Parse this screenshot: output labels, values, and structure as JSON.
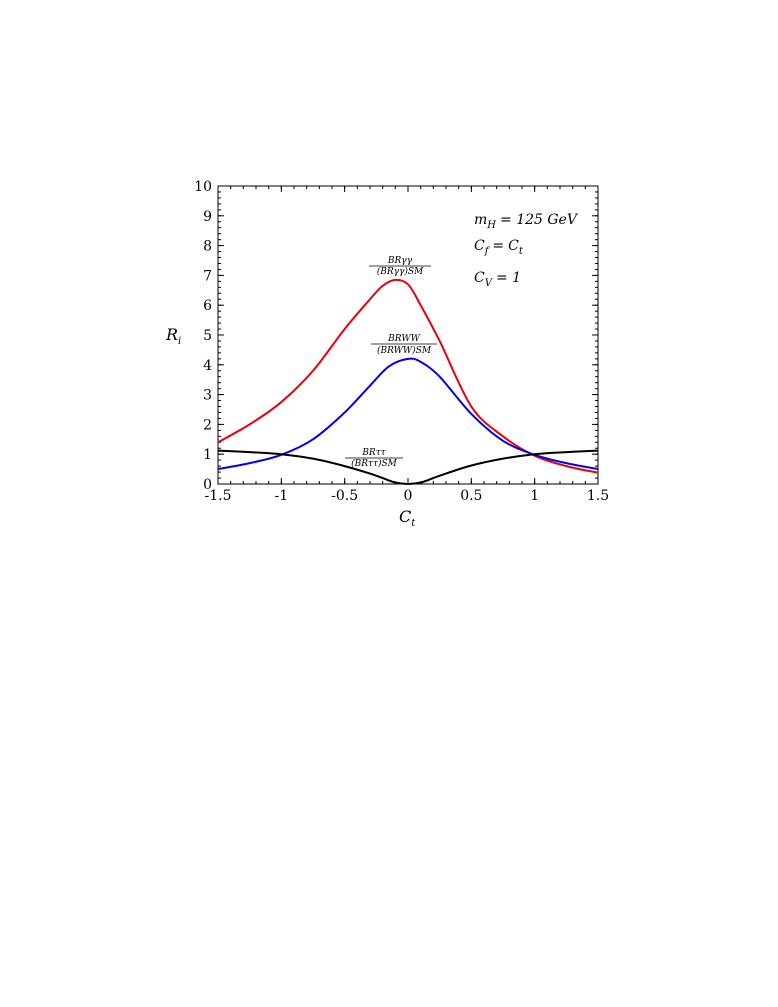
{
  "chart_data": {
    "type": "line",
    "xlabel": "C",
    "xlabel_sub": "t",
    "ylabel": "R",
    "ylabel_sub": "i",
    "xlim": [
      -1.5,
      1.5
    ],
    "ylim": [
      0,
      10
    ],
    "x_ticks": [
      "-1.5",
      "-1",
      "-0.5",
      "0",
      "0.5",
      "1",
      "1.5"
    ],
    "y_ticks": [
      "0",
      "1",
      "2",
      "3",
      "4",
      "5",
      "6",
      "7",
      "8",
      "9",
      "10"
    ],
    "annotations": {
      "mass": {
        "lhs": "m",
        "lhs_sub": "H",
        "rhs": "= 125 GeV"
      },
      "cf": {
        "lhs": "C",
        "lhs_sub": "f",
        "eq": "=",
        "rhs": "C",
        "rhs_sub": "t"
      },
      "cv": {
        "lhs": "C",
        "lhs_sub": "V",
        "rhs": "= 1"
      }
    },
    "series": [
      {
        "color": "#e8000b",
        "label_num": "BRγγ",
        "label_den": "(BRγγ)SM",
        "x": [
          -1.5,
          -1.25,
          -1.0,
          -0.75,
          -0.5,
          -0.3,
          -0.2,
          -0.1,
          0.0,
          0.1,
          0.25,
          0.5,
          0.75,
          1.0,
          1.25,
          1.5
        ],
        "y": [
          1.4,
          2.0,
          2.75,
          3.8,
          5.2,
          6.2,
          6.65,
          6.85,
          6.7,
          6.0,
          4.8,
          2.6,
          1.6,
          0.95,
          0.6,
          0.38
        ]
      },
      {
        "color": "#0000ee",
        "label_num": "BRWW",
        "label_den": "(BRWW)SM",
        "x": [
          -1.5,
          -1.25,
          -1.0,
          -0.75,
          -0.5,
          -0.3,
          -0.15,
          0.0,
          0.1,
          0.25,
          0.5,
          0.75,
          1.0,
          1.25,
          1.5
        ],
        "y": [
          0.5,
          0.7,
          0.98,
          1.5,
          2.4,
          3.3,
          3.95,
          4.2,
          4.1,
          3.6,
          2.35,
          1.45,
          0.98,
          0.7,
          0.5
        ]
      },
      {
        "color": "#000000",
        "label_num": "BRττ",
        "label_den": "(BRττ)SM",
        "x": [
          -1.5,
          -1.25,
          -1.0,
          -0.75,
          -0.5,
          -0.3,
          -0.2,
          -0.1,
          0.0,
          0.1,
          0.2,
          0.3,
          0.5,
          0.75,
          1.0,
          1.25,
          1.5
        ],
        "y": [
          1.12,
          1.07,
          1.0,
          0.85,
          0.6,
          0.35,
          0.2,
          0.05,
          0.0,
          0.05,
          0.2,
          0.35,
          0.62,
          0.85,
          1.0,
          1.07,
          1.12
        ]
      }
    ]
  }
}
